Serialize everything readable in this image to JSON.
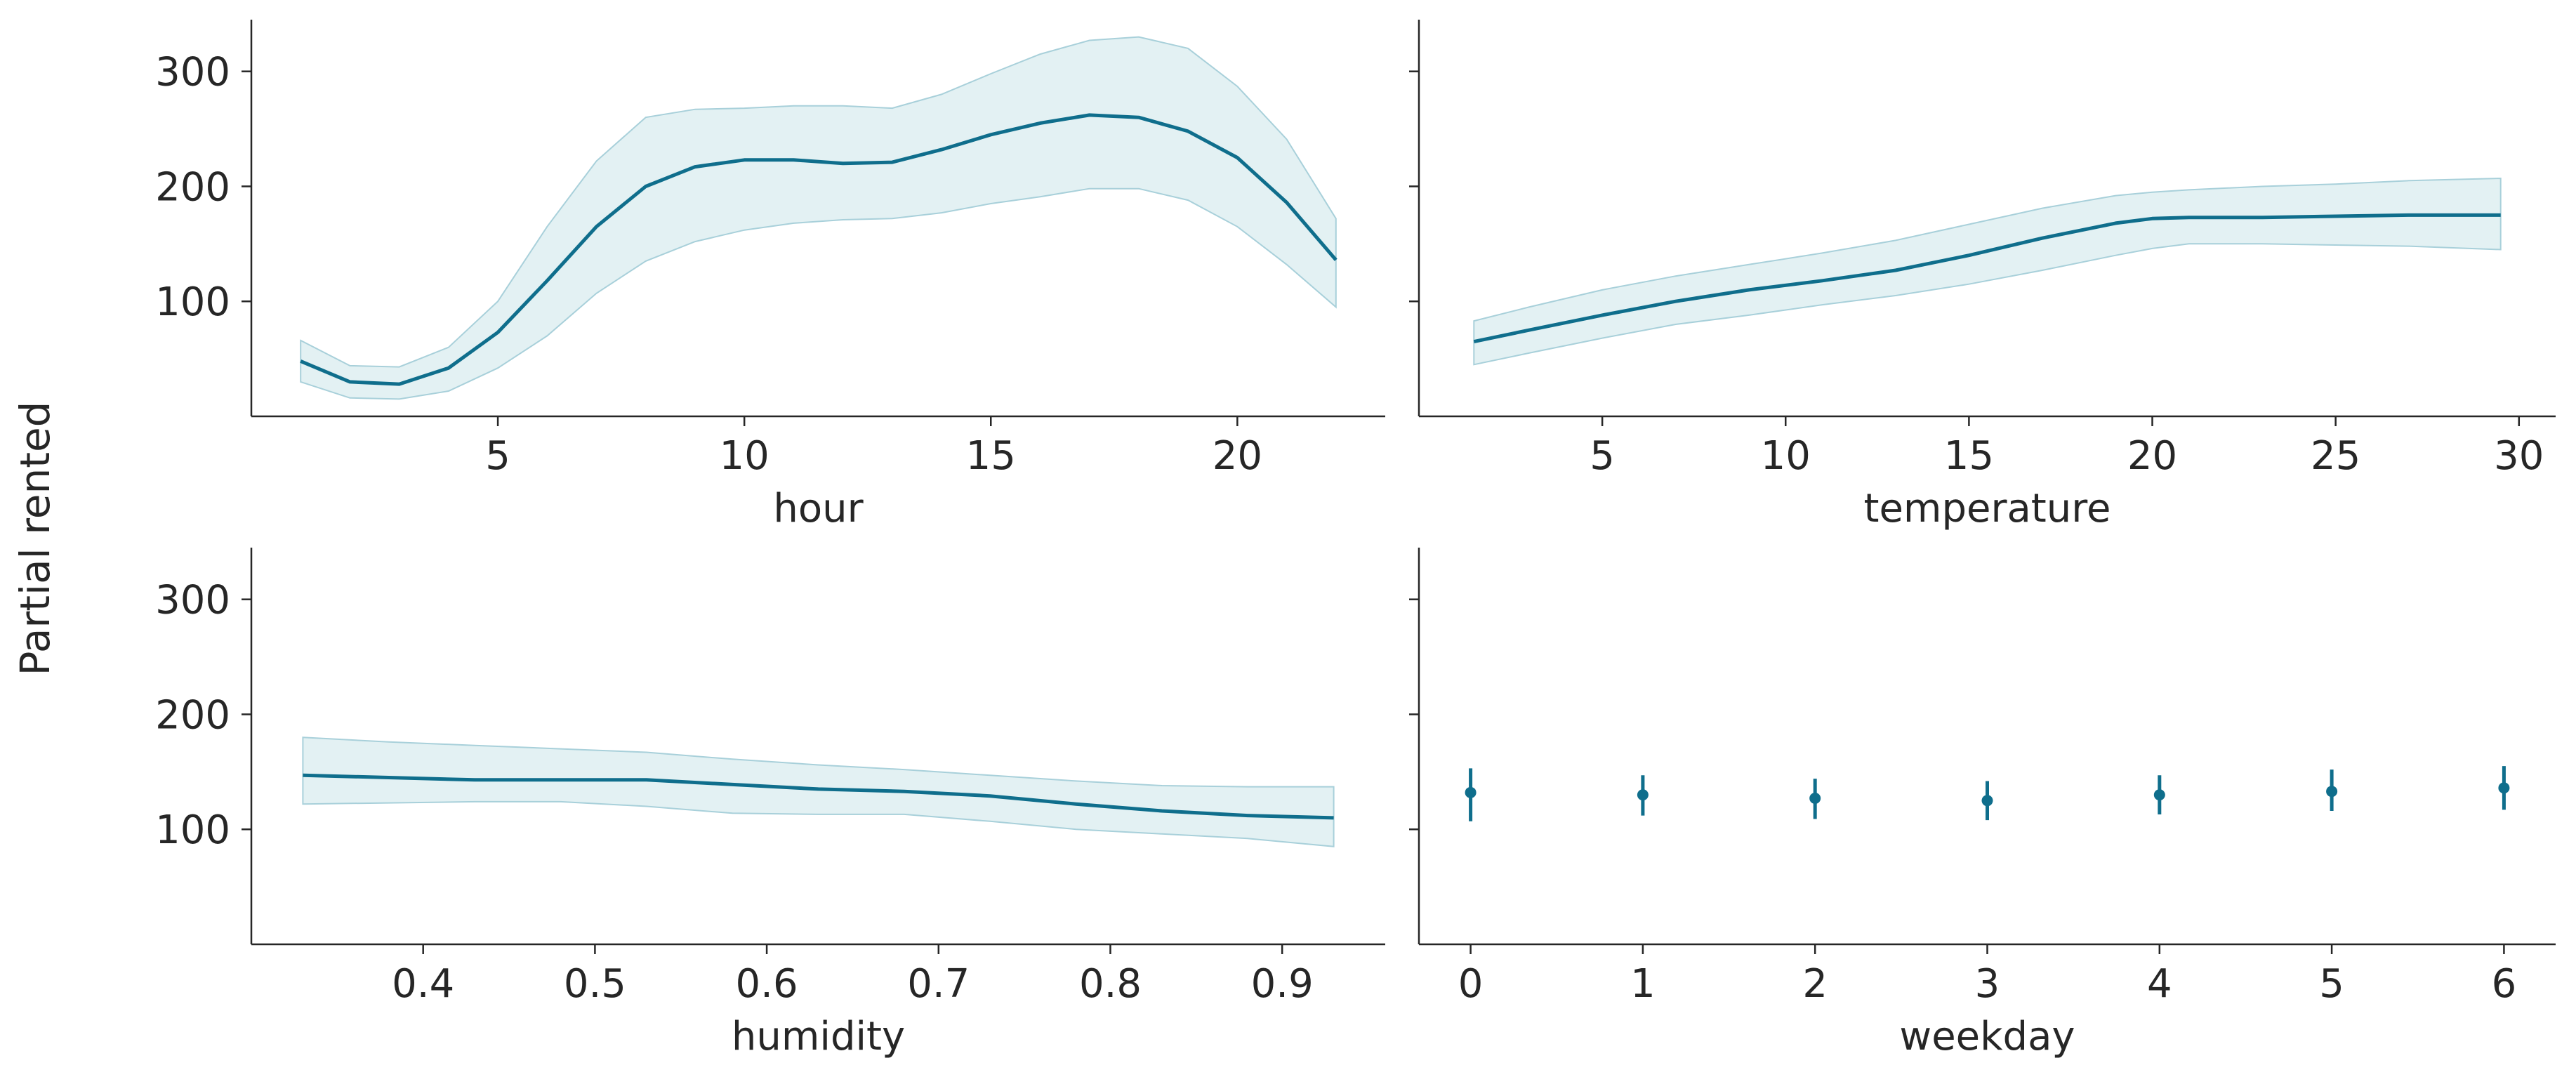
{
  "figure": {
    "ylabel": "Partial rented",
    "colors": {
      "line": "#0f6e8c",
      "band": "#bcdde3",
      "band_edge": "#a8d0da",
      "axis": "#262626"
    }
  },
  "chart_data": [
    {
      "type": "line",
      "xlabel": "hour",
      "ylabel": "Partial rented",
      "xlim": [
        0,
        23
      ],
      "ylim": [
        0,
        345
      ],
      "xticks": [
        5,
        10,
        15,
        20
      ],
      "yticks": [
        100,
        200,
        300
      ],
      "x": [
        1,
        2,
        3,
        4,
        5,
        6,
        7,
        8,
        9,
        10,
        11,
        12,
        13,
        14,
        15,
        16,
        17,
        18,
        19,
        20,
        21,
        22
      ],
      "y": [
        48,
        30,
        28,
        42,
        73,
        118,
        165,
        200,
        217,
        223,
        223,
        220,
        221,
        232,
        245,
        255,
        262,
        260,
        248,
        225,
        186,
        136
      ],
      "lower": [
        30,
        16,
        15,
        22,
        42,
        70,
        107,
        135,
        152,
        162,
        168,
        171,
        172,
        177,
        185,
        191,
        198,
        198,
        188,
        165,
        132,
        95
      ],
      "upper": [
        66,
        44,
        43,
        60,
        100,
        165,
        222,
        260,
        267,
        268,
        270,
        270,
        268,
        280,
        298,
        315,
        327,
        330,
        320,
        287,
        241,
        172
      ]
    },
    {
      "type": "line",
      "xlabel": "temperature",
      "xlim": [
        0,
        31
      ],
      "ylim": [
        0,
        345
      ],
      "xticks": [
        5,
        10,
        15,
        20,
        25,
        30
      ],
      "yticks": [
        100,
        200,
        300
      ],
      "x": [
        1.5,
        3,
        5,
        7,
        9,
        11,
        13,
        15,
        17,
        19,
        20,
        21,
        23,
        25,
        27,
        29.5
      ],
      "y": [
        65,
        75,
        88,
        100,
        110,
        118,
        127,
        140,
        155,
        168,
        172,
        173,
        173,
        174,
        175,
        175
      ],
      "lower": [
        45,
        55,
        68,
        80,
        88,
        97,
        105,
        115,
        127,
        140,
        146,
        150,
        150,
        149,
        148,
        145
      ],
      "upper": [
        83,
        95,
        110,
        122,
        132,
        142,
        153,
        167,
        181,
        192,
        195,
        197,
        200,
        202,
        205,
        207
      ]
    },
    {
      "type": "line",
      "xlabel": "humidity",
      "xlim": [
        0.3,
        0.96
      ],
      "ylim": [
        0,
        345
      ],
      "xticks": [
        0.4,
        0.5,
        0.6,
        0.7,
        0.8,
        0.9
      ],
      "yticks": [
        100,
        200,
        300
      ],
      "x": [
        0.33,
        0.38,
        0.43,
        0.48,
        0.53,
        0.58,
        0.63,
        0.68,
        0.73,
        0.78,
        0.83,
        0.88,
        0.93
      ],
      "y": [
        147,
        145,
        143,
        143,
        143,
        139,
        135,
        133,
        129,
        122,
        116,
        112,
        110
      ],
      "lower": [
        122,
        123,
        124,
        124,
        120,
        114,
        113,
        113,
        107,
        100,
        96,
        92,
        85
      ],
      "upper": [
        180,
        176,
        173,
        170,
        167,
        161,
        156,
        152,
        147,
        142,
        138,
        137,
        137
      ]
    },
    {
      "type": "scatter",
      "xlabel": "weekday",
      "xlim": [
        -0.3,
        6.3
      ],
      "ylim": [
        0,
        345
      ],
      "xticks": [
        0,
        1,
        2,
        3,
        4,
        5,
        6
      ],
      "yticks": [
        100,
        200,
        300
      ],
      "x": [
        0,
        1,
        2,
        3,
        4,
        5,
        6
      ],
      "y": [
        132,
        130,
        127,
        125,
        130,
        133,
        136
      ],
      "lower": [
        107,
        112,
        109,
        108,
        113,
        116,
        117
      ],
      "upper": [
        153,
        147,
        144,
        142,
        147,
        152,
        155
      ]
    }
  ]
}
